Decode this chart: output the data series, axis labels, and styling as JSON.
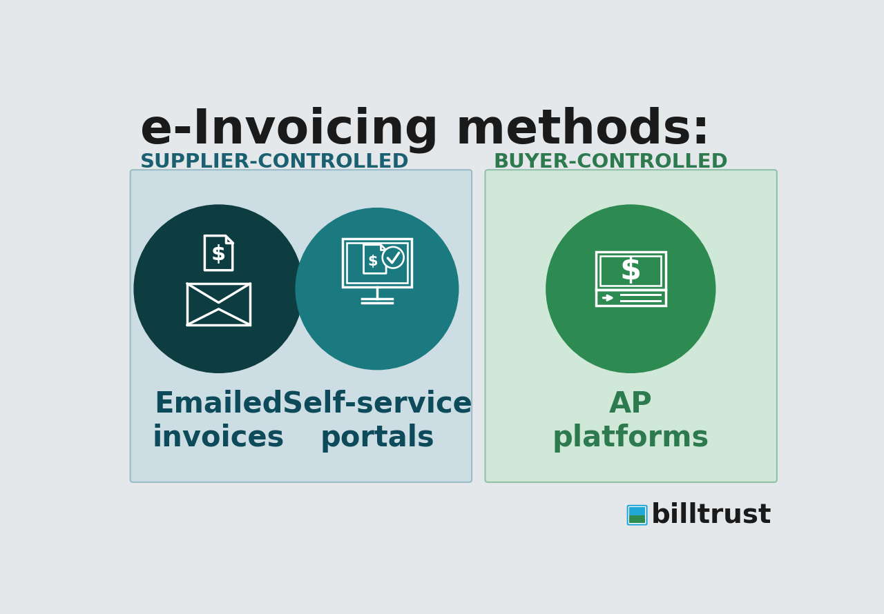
{
  "title": "e-Invoicing methods:",
  "bg_color": "#e5e8ea",
  "supplier_label": "SUPPLIER-CONTROLLED",
  "buyer_label": "BUYER-CONTROLLED",
  "supplier_label_color": "#1a6070",
  "buyer_label_color": "#2d7a4f",
  "supplier_box_color": "#ccdde4",
  "buyer_box_color": "#d0e8d8",
  "supplier_box_border": "#9abbc8",
  "buyer_box_border": "#90c0a8",
  "item1_circle_color": "#0d3d40",
  "item2_circle_color": "#1a7a80",
  "item3_circle_color": "#2d8a50",
  "item1_label": "Emailed\ninvoices",
  "item2_label": "Self-service\nportals",
  "item3_label": "AP\nplatforms",
  "label_color": "#0d4a5a",
  "buyer_text_color": "#2d7a4f",
  "title_color": "#1a1a1a",
  "billtrust_color": "#1a1a1a",
  "billtrust_blue": "#1fa8d8",
  "billtrust_green": "#2d8a50",
  "white": "#ffffff"
}
